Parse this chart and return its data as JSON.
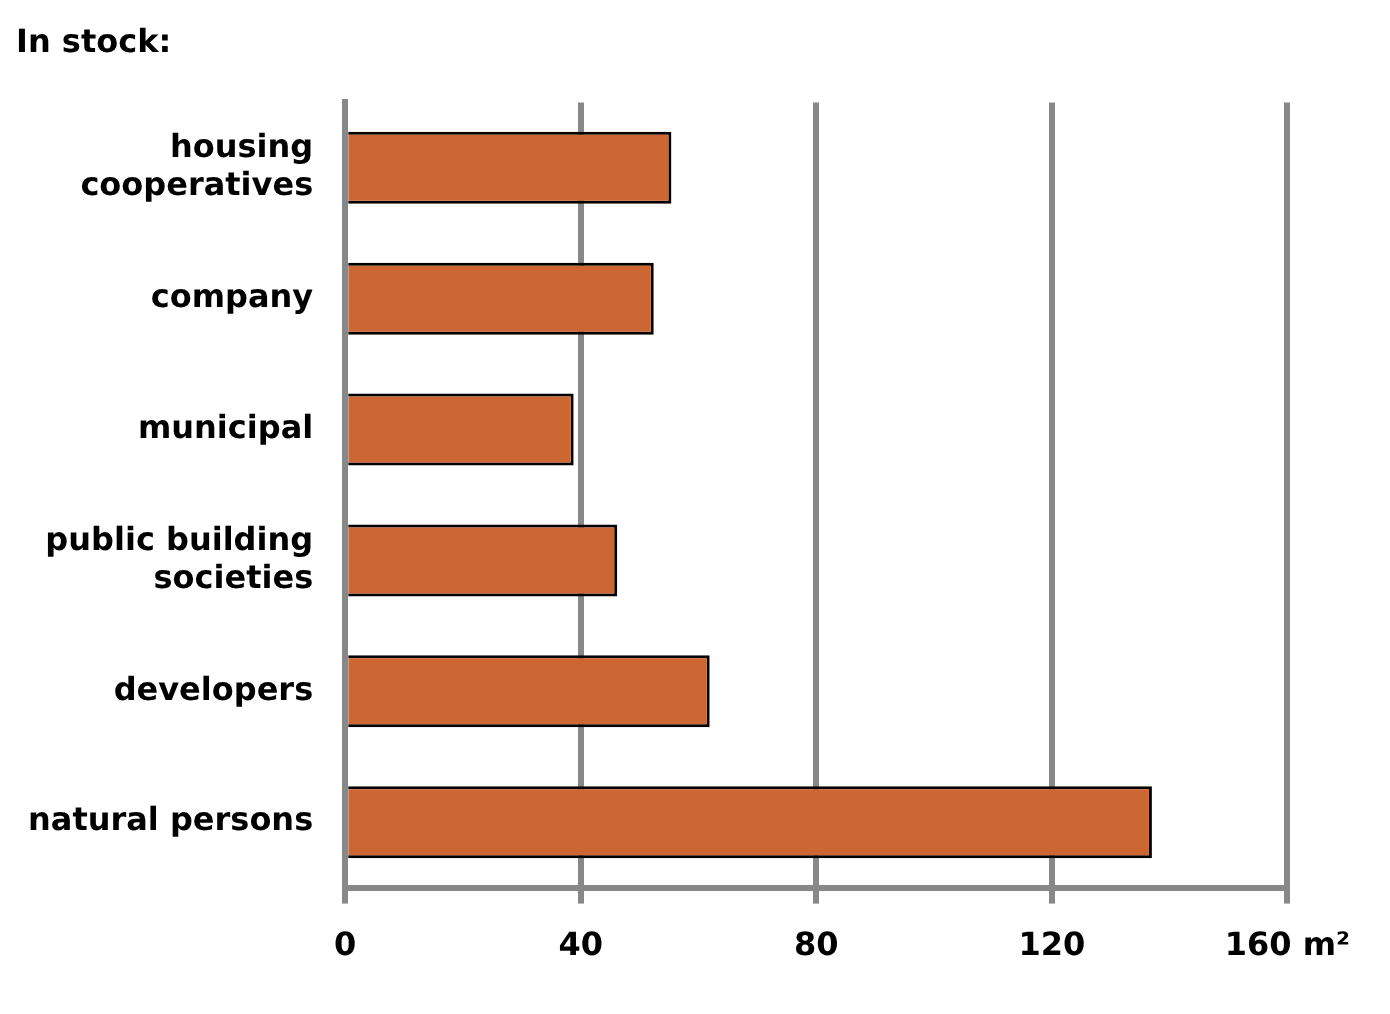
{
  "chart_data": {
    "type": "bar",
    "orientation": "horizontal",
    "title": "In stock:",
    "categories": [
      "housing cooperatives",
      "company",
      "municipal",
      "public building societies",
      "developers",
      "natural persons"
    ],
    "values": [
      55.4,
      52.4,
      38.8,
      46.2,
      61.9,
      137
    ],
    "color": "#cc6633",
    "xlim": [
      0,
      160
    ],
    "xticks": [
      0,
      40,
      80,
      120,
      {
        "value": 160,
        "label": "160 m²"
      }
    ],
    "grid": "x"
  }
}
